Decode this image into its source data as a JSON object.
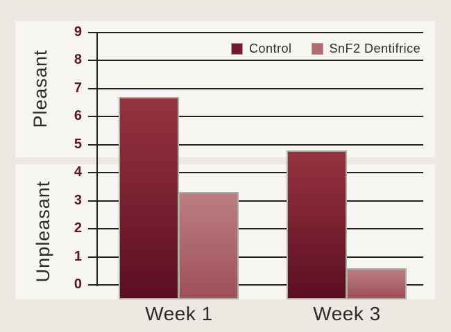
{
  "figure": {
    "background_color": "#ece8e2",
    "panel_color": "#f7f5f1",
    "gridline_color": "#24211e",
    "tick_text_color": "#5c1527",
    "text_color": "#2d2b28",
    "bar_border_color": "#b3ad9f"
  },
  "chart_data": {
    "type": "bar",
    "title": "",
    "categories": [
      "Week 1",
      "Week 3"
    ],
    "series": [
      {
        "name": "Control",
        "values": [
          6.7,
          4.8
        ],
        "color_top": "#96333f",
        "color_bottom": "#5c0e23",
        "swatch_color": "#76182b"
      },
      {
        "name": "SnF2 Dentifrice",
        "values": [
          3.3,
          0.6
        ],
        "color_top": "#bb7e83",
        "color_bottom": "#9f4f5a",
        "swatch_color": "#b56a72"
      }
    ],
    "y_ticks": [
      9,
      8,
      7,
      6,
      5,
      4,
      3,
      2,
      1,
      0
    ],
    "ylim": [
      0,
      9
    ],
    "y_axis_regions": {
      "top": "Pleasant",
      "bottom": "Unpleasant"
    },
    "grid": true,
    "legend_position": "top-right inside plot"
  }
}
